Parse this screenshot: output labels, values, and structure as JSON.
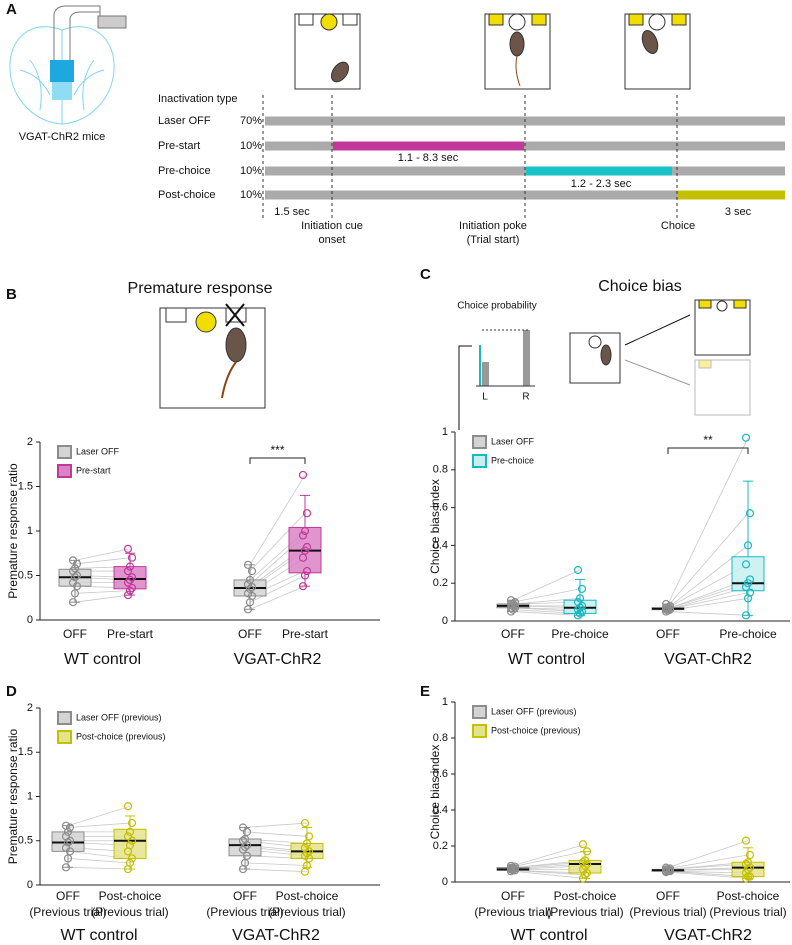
{
  "timeline": {
    "panel": "A",
    "mouse_label": "VGAT-ChR2 mice",
    "header": "Inactivation type",
    "rows": [
      {
        "name": "Laser OFF",
        "share": "70%"
      },
      {
        "name": "Pre-start",
        "share": "10%"
      },
      {
        "name": "Pre-choice",
        "share": "10%"
      },
      {
        "name": "Post-choice",
        "share": "10%"
      }
    ],
    "durations": [
      "1.5 sec",
      "1.1 - 8.3 sec",
      "1.2 - 2.3 sec",
      "3 sec"
    ],
    "events": [
      [
        "Initiation cue",
        "onset"
      ],
      [
        "Initiation poke",
        "(Trial start)"
      ],
      [
        "Choice"
      ]
    ]
  },
  "chart_data": [
    {
      "type": "box",
      "panel": "B",
      "title": "Premature response",
      "ylabel": "Premature response ratio",
      "ylim": [
        0,
        2
      ],
      "yticks": [
        0,
        0.5,
        1,
        1.5,
        2
      ],
      "groups": [
        "WT control",
        "VGAT-ChR2"
      ],
      "categories": [
        "OFF",
        "Pre-start"
      ],
      "significance": "***",
      "series": [
        {
          "name": "Laser OFF",
          "color": "#8c8c8c",
          "fill": "#d4d4d4",
          "boxes": [
            [
              0.2,
              0.38,
              0.48,
              0.57,
              0.67
            ],
            [
              0.12,
              0.27,
              0.36,
              0.45,
              0.62
            ]
          ],
          "points": [
            [
              0.2,
              0.3,
              0.38,
              0.42,
              0.48,
              0.5,
              0.55,
              0.58,
              0.63,
              0.67
            ],
            [
              0.12,
              0.2,
              0.27,
              0.3,
              0.35,
              0.37,
              0.4,
              0.45,
              0.55,
              0.62
            ]
          ]
        },
        {
          "name": "Pre-start",
          "color": "#c0399a",
          "fill": "#dc83c6",
          "boxes": [
            [
              0.28,
              0.35,
              0.46,
              0.6,
              0.75
            ],
            [
              0.38,
              0.53,
              0.78,
              1.04,
              1.4
            ]
          ],
          "points": [
            [
              0.28,
              0.33,
              0.36,
              0.42,
              0.45,
              0.48,
              0.55,
              0.6,
              0.7,
              0.8
            ],
            [
              0.38,
              0.5,
              0.55,
              0.7,
              0.78,
              0.82,
              0.95,
              1.0,
              1.2,
              1.63
            ]
          ]
        }
      ]
    },
    {
      "type": "box",
      "panel": "C",
      "title": "Choice bias",
      "ylabel": "Choice bias index",
      "inset": {
        "title": "Choice probability",
        "categories": [
          "L",
          "R"
        ]
      },
      "ylim": [
        0,
        1
      ],
      "yticks": [
        0,
        0.2,
        0.4,
        0.6,
        0.8,
        1
      ],
      "groups": [
        "WT control",
        "VGAT-ChR2"
      ],
      "categories": [
        "OFF",
        "Pre-choice"
      ],
      "significance": "**",
      "series": [
        {
          "name": "Laser OFF",
          "color": "#8c8c8c",
          "fill": "#d4d4d4",
          "boxes": [
            [
              0.05,
              0.07,
              0.08,
              0.09,
              0.11
            ],
            [
              0.05,
              0.06,
              0.065,
              0.07,
              0.09
            ]
          ],
          "points": [
            [
              0.05,
              0.06,
              0.07,
              0.07,
              0.08,
              0.08,
              0.09,
              0.09,
              0.1,
              0.11
            ],
            [
              0.05,
              0.055,
              0.06,
              0.06,
              0.065,
              0.065,
              0.07,
              0.07,
              0.08,
              0.09
            ]
          ]
        },
        {
          "name": "Pre-choice",
          "color": "#19b8c0",
          "fill": "#c6eef0",
          "boxes": [
            [
              0.03,
              0.04,
              0.07,
              0.11,
              0.22
            ],
            [
              0.03,
              0.16,
              0.2,
              0.34,
              0.74
            ]
          ],
          "points": [
            [
              0.03,
              0.04,
              0.05,
              0.06,
              0.07,
              0.08,
              0.1,
              0.12,
              0.17,
              0.27
            ],
            [
              0.03,
              0.12,
              0.15,
              0.18,
              0.2,
              0.22,
              0.3,
              0.4,
              0.57,
              0.97
            ]
          ]
        }
      ]
    },
    {
      "type": "box",
      "panel": "D",
      "ylabel": "Premature response ratio",
      "ylim": [
        0,
        2
      ],
      "yticks": [
        0,
        0.5,
        1,
        1.5,
        2
      ],
      "groups": [
        "WT control",
        "VGAT-ChR2"
      ],
      "categories": [
        "OFF",
        "Post-choice"
      ],
      "category_note": "(Previous trial)",
      "series": [
        {
          "name": "Laser OFF (previous)",
          "color": "#8c8c8c",
          "fill": "#d4d4d4",
          "boxes": [
            [
              0.2,
              0.38,
              0.48,
              0.6,
              0.67
            ],
            [
              0.18,
              0.33,
              0.45,
              0.52,
              0.65
            ]
          ],
          "points": [
            [
              0.2,
              0.3,
              0.38,
              0.42,
              0.48,
              0.5,
              0.55,
              0.6,
              0.65,
              0.67
            ],
            [
              0.18,
              0.25,
              0.33,
              0.4,
              0.43,
              0.45,
              0.5,
              0.52,
              0.6,
              0.65
            ]
          ]
        },
        {
          "name": "Post-choice (previous)",
          "color": "#c4c000",
          "fill": "#e4e38c",
          "boxes": [
            [
              0.18,
              0.3,
              0.5,
              0.63,
              0.78
            ],
            [
              0.2,
              0.3,
              0.38,
              0.47,
              0.65
            ]
          ],
          "points": [
            [
              0.18,
              0.25,
              0.3,
              0.38,
              0.45,
              0.5,
              0.55,
              0.6,
              0.7,
              0.89
            ],
            [
              0.15,
              0.22,
              0.3,
              0.33,
              0.36,
              0.38,
              0.42,
              0.47,
              0.55,
              0.7
            ]
          ]
        }
      ]
    },
    {
      "type": "box",
      "panel": "E",
      "ylabel": "Choice bias index",
      "ylim": [
        0,
        1
      ],
      "yticks": [
        0,
        0.2,
        0.4,
        0.6,
        0.8,
        1
      ],
      "groups": [
        "WT control",
        "VGAT-ChR2"
      ],
      "categories": [
        "OFF",
        "Post-choice"
      ],
      "category_note": "(Previous trial)",
      "series": [
        {
          "name": "Laser OFF (previous)",
          "color": "#8c8c8c",
          "fill": "#d4d4d4",
          "boxes": [
            [
              0.06,
              0.065,
              0.07,
              0.08,
              0.09
            ],
            [
              0.06,
              0.06,
              0.065,
              0.07,
              0.08
            ]
          ],
          "points": [
            [
              0.06,
              0.065,
              0.065,
              0.07,
              0.07,
              0.075,
              0.08,
              0.08,
              0.085,
              0.09
            ],
            [
              0.055,
              0.06,
              0.06,
              0.06,
              0.065,
              0.065,
              0.07,
              0.07,
              0.075,
              0.08
            ]
          ]
        },
        {
          "name": "Post-choice (previous)",
          "color": "#c4c000",
          "fill": "#e4e38c",
          "boxes": [
            [
              0.02,
              0.05,
              0.1,
              0.12,
              0.17
            ],
            [
              0.02,
              0.03,
              0.08,
              0.11,
              0.19
            ]
          ],
          "points": [
            [
              0.02,
              0.04,
              0.05,
              0.07,
              0.09,
              0.1,
              0.11,
              0.12,
              0.17,
              0.21
            ],
            [
              0.02,
              0.03,
              0.03,
              0.05,
              0.07,
              0.08,
              0.1,
              0.11,
              0.15,
              0.23
            ]
          ]
        }
      ]
    }
  ]
}
